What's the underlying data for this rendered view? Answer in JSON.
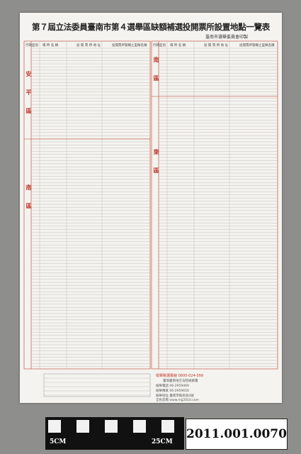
{
  "header": {
    "title": "第７屆立法委員臺南市第４選舉區缺額補選投開票所設置地點一覽表",
    "issuer": "臺南市選舉委員會印製"
  },
  "table": {
    "columns": [
      "行政區別",
      "場 所 名 稱",
      "投 開 票 所 地 址",
      "投開票所管轄之里鄰名稱"
    ],
    "left_districts": [
      "安平區",
      "南區"
    ],
    "right_districts": [
      "南區",
      "東區"
    ]
  },
  "footer": {
    "hotline": "檢舉賄選專線 0800-024-099",
    "office": "臺灣臺南地方法院檢察署",
    "phone": "檢舉電話 06-2959469",
    "fax": "檢舉傳真 06-2959656",
    "address": "檢舉地址 臺南市衛民街4號",
    "website": "全民反賄 www.mjj2010.com"
  },
  "label": {
    "scale_left": "5CM",
    "scale_right": "25CM",
    "accession": "2011.001.0070"
  }
}
